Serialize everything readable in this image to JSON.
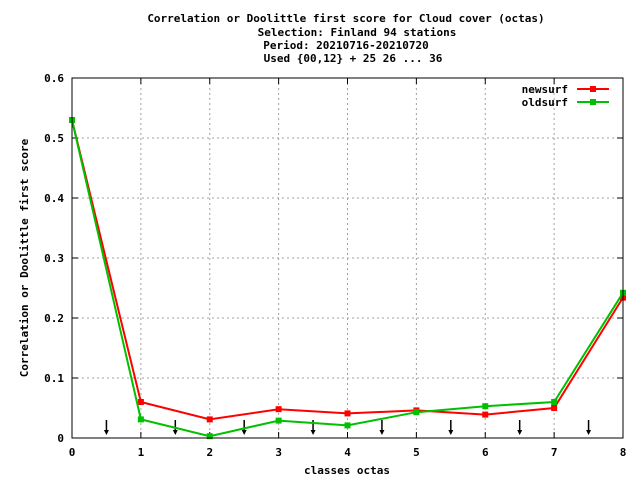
{
  "chart_data": {
    "type": "line",
    "title_lines": [
      "Correlation or Doolittle first score  for Cloud cover (octas)",
      "Selection: Finland     94 stations",
      "Period: 20210716-20210720",
      "Used {00,12} + 25 26 ... 36"
    ],
    "xlabel": "classes octas",
    "ylabel": "Correlation or Doolittle first score",
    "xlim": [
      0,
      8
    ],
    "ylim": [
      0,
      0.6
    ],
    "xticks": [
      0,
      1,
      2,
      3,
      4,
      5,
      6,
      7,
      8
    ],
    "xtick_labels": [
      "0",
      "1",
      "2",
      "3",
      "4",
      "5",
      "6",
      "7",
      "8"
    ],
    "yticks": [
      0,
      0.1,
      0.2,
      0.3,
      0.4,
      0.5,
      0.6
    ],
    "ytick_labels": [
      "0",
      "0.1",
      "0.2",
      "0.3",
      "0.4",
      "0.5",
      "0.6"
    ],
    "grid": true,
    "legend_position": "top-right",
    "x": [
      0,
      1,
      2,
      3,
      4,
      5,
      6,
      7,
      8
    ],
    "series": [
      {
        "name": "newsurf",
        "color": "#ff0000",
        "values": [
          0.53,
          0.06,
          0.031,
          0.048,
          0.041,
          0.046,
          0.039,
          0.05,
          0.234
        ]
      },
      {
        "name": "oldsurf",
        "color": "#00c000",
        "values": [
          0.53,
          0.031,
          0.003,
          0.029,
          0.021,
          0.043,
          0.053,
          0.06,
          0.242
        ]
      }
    ],
    "arrows_x": [
      0.5,
      1.5,
      2.5,
      3.5,
      4.5,
      5.5,
      6.5,
      7.5
    ]
  }
}
